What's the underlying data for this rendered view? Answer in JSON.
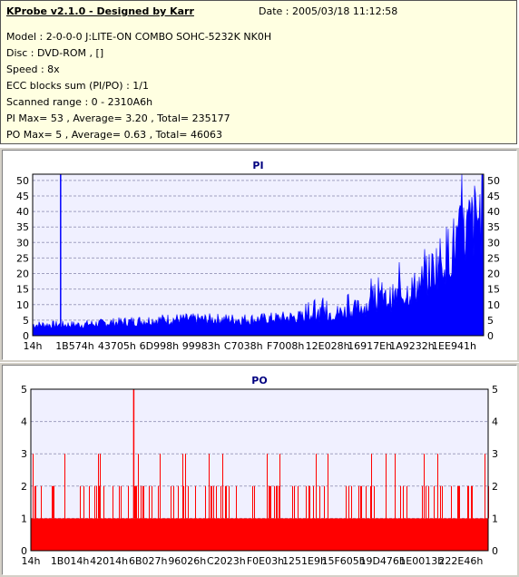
{
  "info": {
    "title": "KProbe v2.1.0 - Designed by Karr",
    "date": "Date : 2005/03/18 11:12:58",
    "lines": [
      "Model : 2-0-0-0 J:LITE-ON COMBO SOHC-5232K NK0H",
      "Disc : DVD-ROM ,  []",
      "Speed : 8x",
      "ECC blocks sum (PI/PO) : 1/1",
      "Scanned range : 0 - 2310A6h",
      "PI Max= 53 , Average= 3.20 , Total= 235177",
      "PO Max= 5 , Average= 0.63 , Total= 46063"
    ]
  },
  "colors": {
    "bar": "#0000ff",
    "po_bar": "#ff0000",
    "plot_bg": "#f0f0ff",
    "grid": "#a0a0c0",
    "frame": "#000000"
  },
  "chart_data": [
    {
      "type": "area",
      "title": "PI",
      "ylim": [
        0,
        52
      ],
      "yticks": [
        0,
        5,
        10,
        15,
        20,
        25,
        30,
        35,
        40,
        45,
        50
      ],
      "xtick_labels": [
        "14h",
        "1B574h",
        "43705h",
        "6D998h",
        "99983h",
        "C7038h",
        "F7008h",
        "12E028h",
        "16917Eh",
        "1A9232h",
        "1EE941h"
      ],
      "spike": {
        "x_fraction": 0.062,
        "value": 53
      },
      "profile": [
        [
          0.0,
          4
        ],
        [
          0.1,
          4
        ],
        [
          0.2,
          5
        ],
        [
          0.3,
          6
        ],
        [
          0.4,
          6
        ],
        [
          0.5,
          6
        ],
        [
          0.6,
          7
        ],
        [
          0.7,
          9
        ],
        [
          0.76,
          12
        ],
        [
          0.82,
          15
        ],
        [
          0.86,
          19
        ],
        [
          0.9,
          27
        ],
        [
          0.94,
          34
        ],
        [
          0.97,
          40
        ],
        [
          1.0,
          46
        ]
      ],
      "grid": true
    },
    {
      "type": "bar",
      "title": "PO",
      "ylim": [
        0,
        5
      ],
      "yticks": [
        0,
        1,
        2,
        3,
        4,
        5
      ],
      "xtick_labels": [
        "14h",
        "1B014h",
        "42014h",
        "6B027h",
        "96026h",
        "C2023h",
        "F0E03h",
        "1251E9h",
        "15F605h",
        "19D476h",
        "1E0013h",
        "222E46h"
      ],
      "base_value": 1,
      "peak": {
        "x_fraction": 0.225,
        "value": 5
      },
      "grid": true
    }
  ]
}
